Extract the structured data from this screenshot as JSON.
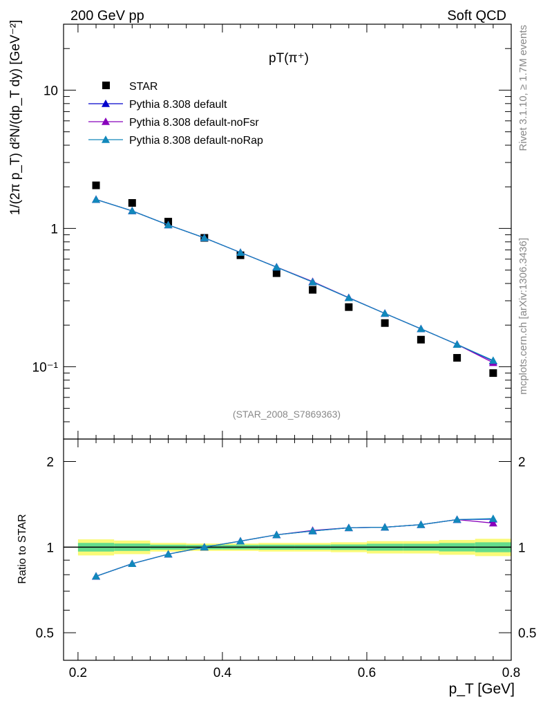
{
  "header": {
    "left": "200 GeV pp",
    "right": "Soft QCD"
  },
  "side": {
    "rivet": "Rivet 3.1.10, ≥ 1.7M events",
    "source": "mcplots.cern.ch [arXiv:1306.3436]"
  },
  "chart_data": {
    "type": "scatter",
    "title": "pT(π⁺)",
    "watermark": "(STAR_2008_S7869363)",
    "xlabel": "p_T [GeV]",
    "ylabel": "1/(2π p_T) d²N/(dp_T dy) [GeV⁻²]",
    "x_axis": {
      "range": [
        0.18,
        0.8
      ],
      "ticks": [
        0.2,
        0.4,
        0.6,
        0.8
      ],
      "tick_labels": [
        "0.2",
        "0.4",
        "0.6",
        "0.8"
      ]
    },
    "main_panel": {
      "scale": "log",
      "y_range": [
        0.03,
        30
      ],
      "tick_labels": {
        "10": "10",
        "1": "1",
        "0.1": "10⁻¹"
      },
      "series": [
        {
          "name": "STAR",
          "color": "#000000",
          "marker": "square",
          "x": [
            0.225,
            0.275,
            0.325,
            0.375,
            0.425,
            0.475,
            0.525,
            0.575,
            0.625,
            0.675,
            0.725,
            0.775
          ],
          "y": [
            2.05,
            1.53,
            1.12,
            0.855,
            0.64,
            0.475,
            0.36,
            0.27,
            0.207,
            0.157,
            0.116,
            0.09
          ]
        },
        {
          "name": "Pythia 8.308 default",
          "color": "#0000cc",
          "marker": "triangle",
          "x": [
            0.225,
            0.275,
            0.325,
            0.375,
            0.425,
            0.475,
            0.525,
            0.575,
            0.625,
            0.675,
            0.725,
            0.775
          ],
          "y": [
            1.62,
            1.34,
            1.06,
            0.855,
            0.67,
            0.525,
            0.41,
            0.315,
            0.243,
            0.188,
            0.145,
            0.11
          ]
        },
        {
          "name": "Pythia 8.308 default-noFsr",
          "color": "#8800bb",
          "marker": "triangle",
          "x": [
            0.225,
            0.275,
            0.325,
            0.375,
            0.425,
            0.475,
            0.525,
            0.575,
            0.625,
            0.675,
            0.725,
            0.775
          ],
          "y": [
            1.62,
            1.34,
            1.06,
            0.855,
            0.67,
            0.526,
            0.413,
            0.316,
            0.243,
            0.188,
            0.145,
            0.107
          ]
        },
        {
          "name": "Pythia 8.308 default-noRap",
          "color": "#1188bb",
          "marker": "triangle",
          "x": [
            0.225,
            0.275,
            0.325,
            0.375,
            0.425,
            0.475,
            0.525,
            0.575,
            0.625,
            0.675,
            0.725,
            0.775
          ],
          "y": [
            1.62,
            1.34,
            1.06,
            0.855,
            0.67,
            0.525,
            0.41,
            0.315,
            0.243,
            0.188,
            0.145,
            0.111
          ]
        }
      ]
    },
    "ratio_panel": {
      "ylabel": "Ratio to STAR",
      "scale": "log",
      "y_range": [
        0.4,
        2.4
      ],
      "ticks": [
        0.5,
        1,
        2
      ],
      "tick_labels": [
        "0.5",
        "1",
        "2"
      ],
      "band_edges": [
        0.2,
        0.25,
        0.3,
        0.35,
        0.4,
        0.45,
        0.5,
        0.55,
        0.6,
        0.65,
        0.7,
        0.75,
        0.8
      ],
      "band_outer": [
        0.065,
        0.055,
        0.035,
        0.03,
        0.03,
        0.035,
        0.035,
        0.04,
        0.05,
        0.05,
        0.06,
        0.07
      ],
      "band_inner": [
        0.035,
        0.03,
        0.02,
        0.018,
        0.018,
        0.02,
        0.02,
        0.022,
        0.028,
        0.028,
        0.034,
        0.04
      ],
      "series": [
        {
          "name": "Pythia 8.308 default",
          "color": "#0000cc",
          "y": [
            0.79,
            0.875,
            0.945,
            1.0,
            1.05,
            1.105,
            1.14,
            1.17,
            1.175,
            1.2,
            1.25,
            1.255
          ]
        },
        {
          "name": "Pythia 8.308 default-noFsr",
          "color": "#8800bb",
          "y": [
            0.79,
            0.875,
            0.945,
            1.0,
            1.05,
            1.105,
            1.145,
            1.17,
            1.175,
            1.2,
            1.25,
            1.215
          ]
        },
        {
          "name": "Pythia 8.308 default-noRap",
          "color": "#1188bb",
          "y": [
            0.79,
            0.875,
            0.945,
            1.0,
            1.05,
            1.105,
            1.14,
            1.17,
            1.175,
            1.2,
            1.25,
            1.26
          ]
        }
      ]
    },
    "legend_placement": "top-left",
    "colors": {
      "band_outer": "#fafa78",
      "band_inner": "#64dc8c"
    }
  }
}
